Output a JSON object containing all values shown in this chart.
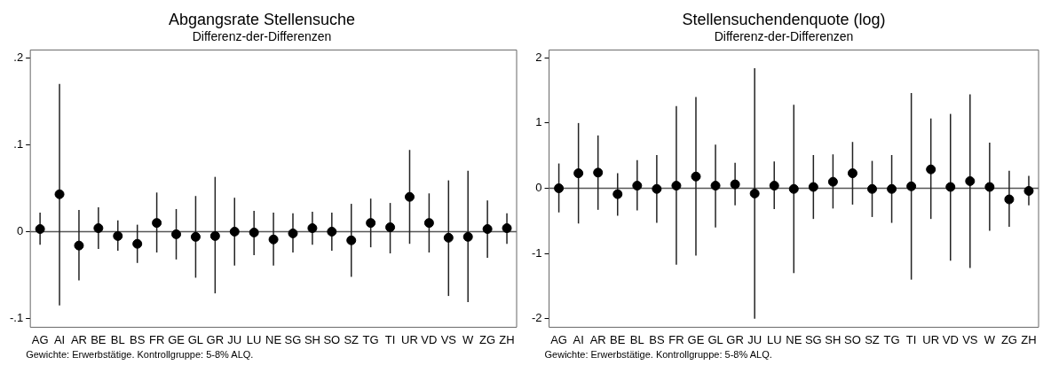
{
  "chart_data": [
    {
      "type": "scatter",
      "title": "Abgangsrate Stellensuche",
      "subtitle": "Differenz-der-Differenzen",
      "categories": [
        "AG",
        "AI",
        "AR",
        "BE",
        "BL",
        "BS",
        "FR",
        "GE",
        "GL",
        "GR",
        "JU",
        "LU",
        "NE",
        "SG",
        "SH",
        "SO",
        "SZ",
        "TG",
        "TI",
        "UR",
        "VD",
        "VS",
        "W",
        "ZG",
        "ZH"
      ],
      "series": [
        {
          "color": "#000000",
          "values": [
            0.003,
            0.043,
            -0.016,
            0.004,
            -0.005,
            -0.014,
            0.01,
            -0.003,
            -0.006,
            -0.005,
            0,
            -0.001,
            -0.009,
            -0.002,
            0.004,
            0,
            -0.01,
            0.01,
            0.005,
            0.04,
            0.01,
            -0.007,
            -0.006,
            0.003,
            0.004
          ],
          "errors": [
            [
              -0.015,
              0.022
            ],
            [
              -0.085,
              0.17
            ],
            [
              -0.056,
              0.025
            ],
            [
              -0.02,
              0.028
            ],
            [
              -0.022,
              0.013
            ],
            [
              -0.036,
              0.008
            ],
            [
              -0.024,
              0.045
            ],
            [
              -0.032,
              0.026
            ],
            [
              -0.053,
              0.041
            ],
            [
              -0.071,
              0.063
            ],
            [
              -0.039,
              0.039
            ],
            [
              -0.027,
              0.024
            ],
            [
              -0.039,
              0.022
            ],
            [
              -0.024,
              0.021
            ],
            [
              -0.015,
              0.023
            ],
            [
              -0.022,
              0.022
            ],
            [
              -0.052,
              0.032
            ],
            [
              -0.018,
              0.038
            ],
            [
              -0.025,
              0.033
            ],
            [
              -0.014,
              0.094
            ],
            [
              -0.024,
              0.044
            ],
            [
              -0.074,
              0.059
            ],
            [
              -0.081,
              0.07
            ],
            [
              -0.03,
              0.036
            ],
            [
              -0.014,
              0.021
            ]
          ]
        }
      ],
      "ylim": [
        -0.11,
        0.209
      ],
      "yticks": [
        {
          "value": -0.1,
          "label": "-.1"
        },
        0,
        {
          "value": 0.1,
          "label": ".1"
        },
        {
          "value": 0.2,
          "label": ".2"
        }
      ],
      "ref_lines": [
        {
          "axis": "y",
          "value": 0,
          "color": "#555555"
        }
      ],
      "marker": "circle",
      "grid": false,
      "legend": false,
      "annotations": [
        "Gewichte: Erwerbstätige. Kontrollgruppe: 5-8% ALQ."
      ]
    },
    {
      "type": "scatter",
      "title": "Stellensuchendenquote (log)",
      "subtitle": "Differenz-der-Differenzen",
      "categories": [
        "AG",
        "AI",
        "AR",
        "BE",
        "BL",
        "BS",
        "FR",
        "GE",
        "GL",
        "GR",
        "JU",
        "LU",
        "NE",
        "SG",
        "SH",
        "SO",
        "SZ",
        "TG",
        "TI",
        "UR",
        "VD",
        "VS",
        "W",
        "ZG",
        "ZH"
      ],
      "series": [
        {
          "color": "#000000",
          "values": [
            0,
            0.23,
            0.24,
            -0.09,
            0.04,
            -0.01,
            0.04,
            0.18,
            0.04,
            0.06,
            -0.08,
            0.04,
            -0.01,
            0.02,
            0.1,
            0.23,
            -0.01,
            -0.01,
            0.03,
            0.29,
            0.02,
            0.11,
            0.02,
            -0.17,
            -0.04
          ],
          "errors": [
            [
              -0.37,
              0.38
            ],
            [
              -0.54,
              1.0
            ],
            [
              -0.33,
              0.81
            ],
            [
              -0.42,
              0.23
            ],
            [
              -0.34,
              0.43
            ],
            [
              -0.53,
              0.51
            ],
            [
              -1.17,
              1.26
            ],
            [
              -1.03,
              1.4
            ],
            [
              -0.6,
              0.67
            ],
            [
              -0.26,
              0.39
            ],
            [
              -2.0,
              1.84
            ],
            [
              -0.32,
              0.41
            ],
            [
              -1.3,
              1.28
            ],
            [
              -0.47,
              0.51
            ],
            [
              -0.31,
              0.52
            ],
            [
              -0.25,
              0.71
            ],
            [
              -0.44,
              0.42
            ],
            [
              -0.53,
              0.51
            ],
            [
              -1.4,
              1.46
            ],
            [
              -0.47,
              1.07
            ],
            [
              -1.11,
              1.14
            ],
            [
              -1.22,
              1.44
            ],
            [
              -0.65,
              0.7
            ],
            [
              -0.59,
              0.27
            ],
            [
              -0.26,
              0.19
            ]
          ]
        }
      ],
      "ylim": [
        -2.13,
        2.12
      ],
      "yticks": [
        -2,
        -1,
        0,
        1,
        2
      ],
      "ref_lines": [
        {
          "axis": "y",
          "value": 0,
          "color": "#555555"
        }
      ],
      "marker": "circle",
      "grid": false,
      "legend": false,
      "annotations": [
        "Gewichte: Erwerbstätige. Kontrollgruppe: 5-8% ALQ."
      ]
    }
  ]
}
